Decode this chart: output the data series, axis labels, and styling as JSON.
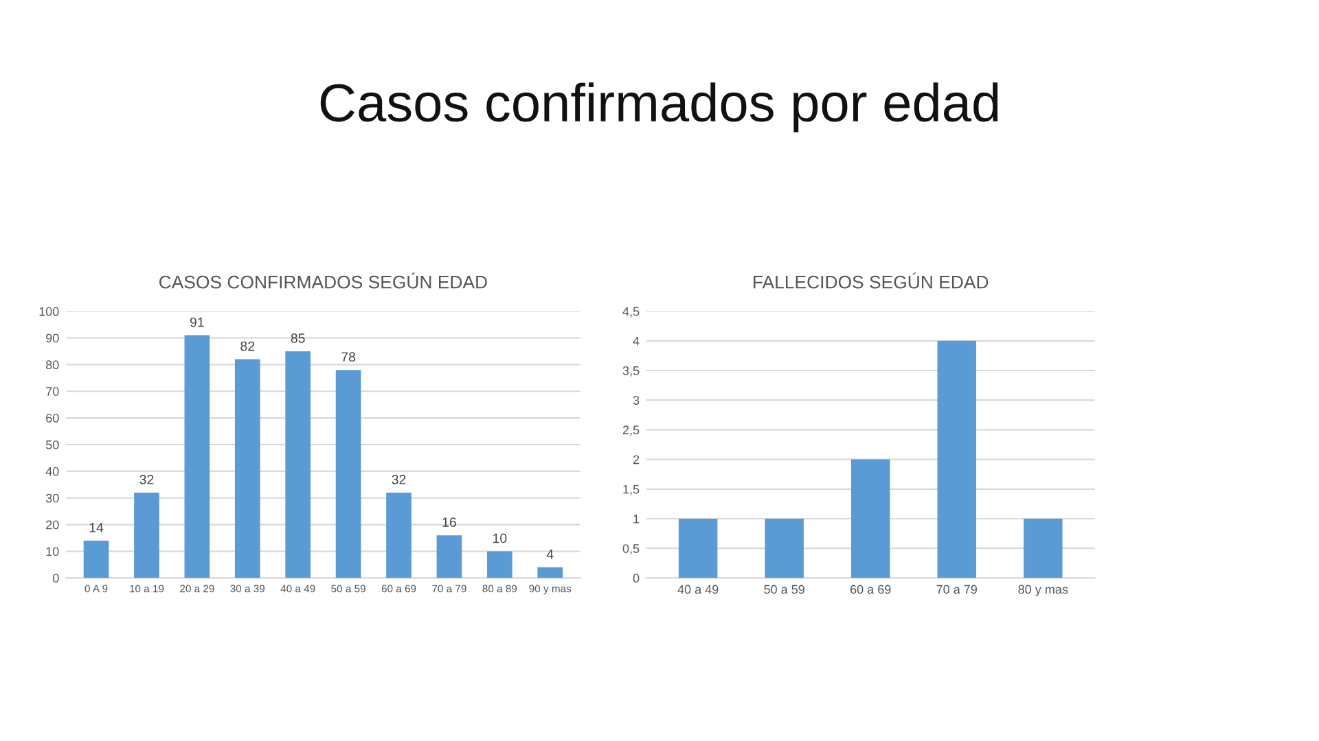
{
  "chart_data": [
    {
      "type": "other",
      "title": "Casos confirmados por edad"
    },
    {
      "type": "bar",
      "title": "CASOS CONFIRMADOS SEGÚN EDAD",
      "categories": [
        "0 A 9",
        "10 a 19",
        "20 a 29",
        "30 a 39",
        "40 a 49",
        "50 a 59",
        "60 a 69",
        "70 a 79",
        "80 a 89",
        "90 y mas"
      ],
      "values": [
        14,
        32,
        91,
        82,
        85,
        78,
        32,
        16,
        10,
        4
      ],
      "color": "#5b9bd5",
      "ylim": [
        0,
        100
      ],
      "yticks": [
        0,
        10,
        20,
        30,
        40,
        50,
        60,
        70,
        80,
        90,
        100
      ],
      "grid": "y",
      "data_labels": true
    },
    {
      "type": "bar",
      "title": "FALLECIDOS SEGÚN EDAD",
      "categories": [
        "40 a 49",
        "50 a 59",
        "60 a 69",
        "70 a 79",
        "80 y mas"
      ],
      "values": [
        1,
        1,
        2,
        4,
        1
      ],
      "color": "#5b9bd5",
      "ylim": [
        0,
        4.5
      ],
      "yticks": [
        0,
        {
          "value": 0.5,
          "label": "0,5"
        },
        1,
        {
          "value": 1.5,
          "label": "1,5"
        },
        2,
        {
          "value": 2.5,
          "label": "2,5"
        },
        3,
        {
          "value": 3.5,
          "label": "3,5"
        },
        4,
        {
          "value": 4.5,
          "label": "4,5"
        }
      ],
      "grid": "y"
    }
  ]
}
